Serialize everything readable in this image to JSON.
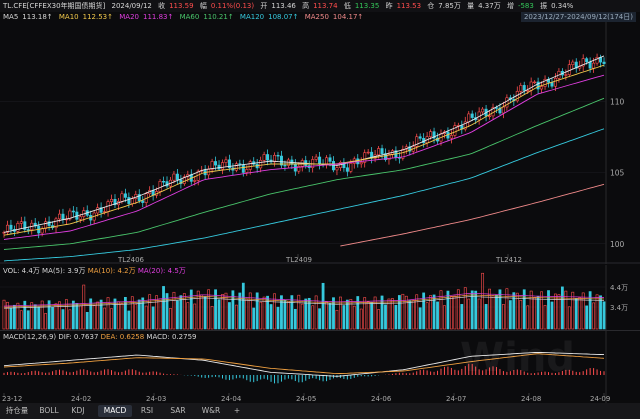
{
  "header": {
    "symbol": "TL.CFE[CFFEX30年期国债期货]",
    "date": "2024/09/12",
    "close_label": "收",
    "close": "113.59",
    "change_label": "幅",
    "change": "0.11%(0.13)",
    "open_label": "开",
    "open": "113.46",
    "high_label": "高",
    "high": "113.74",
    "low_label": "低",
    "low": "113.35",
    "prev_label": "昨",
    "prev": "113.53",
    "position_label": "仓",
    "position": "7.85万",
    "volume_label": "量",
    "volume": "4.37万",
    "diff_label": "增",
    "diff": "-583",
    "amp_label": "振",
    "amp": "0.34%"
  },
  "ma": [
    {
      "name": "MA5",
      "value": "113.18↑"
    },
    {
      "name": "MA10",
      "value": "112.53↑"
    },
    {
      "name": "MA20",
      "value": "111.83↑"
    },
    {
      "name": "MA60",
      "value": "110.21↑"
    },
    {
      "name": "MA120",
      "value": "108.07↑"
    },
    {
      "name": "MA250",
      "value": "104.17↑"
    }
  ],
  "range": "2023/12/27-2024/09/12(174日)",
  "price_axis": [
    "110",
    "105",
    "100"
  ],
  "contract_labels": [
    "TL2406",
    "TL2409",
    "TL2412"
  ],
  "vol_header": {
    "vol": "VOL: 4.4万",
    "ma5": "MA(5): 3.9万",
    "ma10": "MA(10): 4.2万",
    "ma20": "MA(20): 4.5万"
  },
  "vol_axis": [
    "4.4万",
    "3.4万"
  ],
  "macd_header": {
    "name": "MACD(12,26,9)",
    "dif": "DIF: 0.7637",
    "dea": "DEA: 0.6258",
    "macd": "MACD: 0.2759"
  },
  "date_axis": [
    "23-12",
    "24-02",
    "24-03",
    "24-04",
    "24-05",
    "24-06",
    "24-07",
    "24-08",
    "24-09"
  ],
  "tabs": [
    "持仓量",
    "BOLL",
    "KDJ",
    "MACD",
    "RSI",
    "SAR",
    "W&R",
    "+"
  ],
  "watermark": "Wind",
  "colors": {
    "up": "#ff4d4d",
    "down": "#36c9dd",
    "ma5": "#e8e8e8",
    "ma10": "#f2c94c",
    "ma20": "#e03ee0",
    "ma60": "#49c46b",
    "ma120": "#36c9dd",
    "ma250": "#f08a8a"
  },
  "chart_data": [
    {
      "type": "line",
      "xlabel": "",
      "ylabel": "",
      "x": [
        "23-12",
        "24-01",
        "24-02",
        "24-03",
        "24-04",
        "24-05",
        "24-06",
        "24-07",
        "24-08",
        "24-09"
      ],
      "ylim": [
        99,
        115
      ],
      "series": [
        {
          "name": "MA5",
          "values": [
            100.8,
            101.8,
            103.3,
            105.2,
            105.8,
            105.5,
            106.6,
            108.6,
            111.2,
            113.18
          ]
        },
        {
          "name": "MA10",
          "values": [
            100.6,
            101.4,
            102.9,
            105.0,
            105.6,
            105.6,
            106.4,
            108.3,
            111.0,
            112.53
          ]
        },
        {
          "name": "MA20",
          "values": [
            100.3,
            100.9,
            102.3,
            104.5,
            105.2,
            105.6,
            106.1,
            107.8,
            110.5,
            111.83
          ]
        },
        {
          "name": "MA60",
          "values": [
            99.6,
            100.0,
            100.8,
            102.2,
            103.5,
            104.5,
            105.2,
            106.3,
            108.3,
            110.21
          ]
        },
        {
          "name": "MA120",
          "values": [
            98.8,
            99.1,
            99.6,
            100.4,
            101.4,
            102.4,
            103.4,
            104.6,
            106.4,
            108.07
          ]
        },
        {
          "name": "MA250",
          "values": [
            null,
            null,
            null,
            null,
            null,
            99.8,
            100.7,
            101.7,
            102.9,
            104.17
          ]
        }
      ]
    },
    {
      "type": "bar",
      "x": [
        "23-12",
        "24-01",
        "24-02",
        "24-03",
        "24-04",
        "24-05",
        "24-06",
        "24-07",
        "24-08",
        "24-09"
      ],
      "series": [
        {
          "name": "VOL",
          "values": [
            3.2,
            3.5,
            3.9,
            4.8,
            4.2,
            3.8,
            4.0,
            5.0,
            4.6,
            4.4
          ]
        }
      ]
    },
    {
      "type": "line",
      "x": [
        "23-12",
        "24-01",
        "24-02",
        "24-03",
        "24-04",
        "24-05",
        "24-06",
        "24-07",
        "24-08",
        "24-09"
      ],
      "series": [
        {
          "name": "DIF",
          "values": [
            0.35,
            0.55,
            0.75,
            0.55,
            0.1,
            -0.05,
            0.2,
            0.7,
            0.85,
            0.7637
          ]
        },
        {
          "name": "DEA",
          "values": [
            0.3,
            0.45,
            0.65,
            0.6,
            0.25,
            0.05,
            0.15,
            0.5,
            0.8,
            0.6258
          ]
        },
        {
          "name": "MACD",
          "values": [
            0.1,
            0.2,
            0.2,
            -0.1,
            -0.3,
            -0.2,
            0.1,
            0.4,
            0.1,
            0.2759
          ]
        }
      ]
    }
  ]
}
